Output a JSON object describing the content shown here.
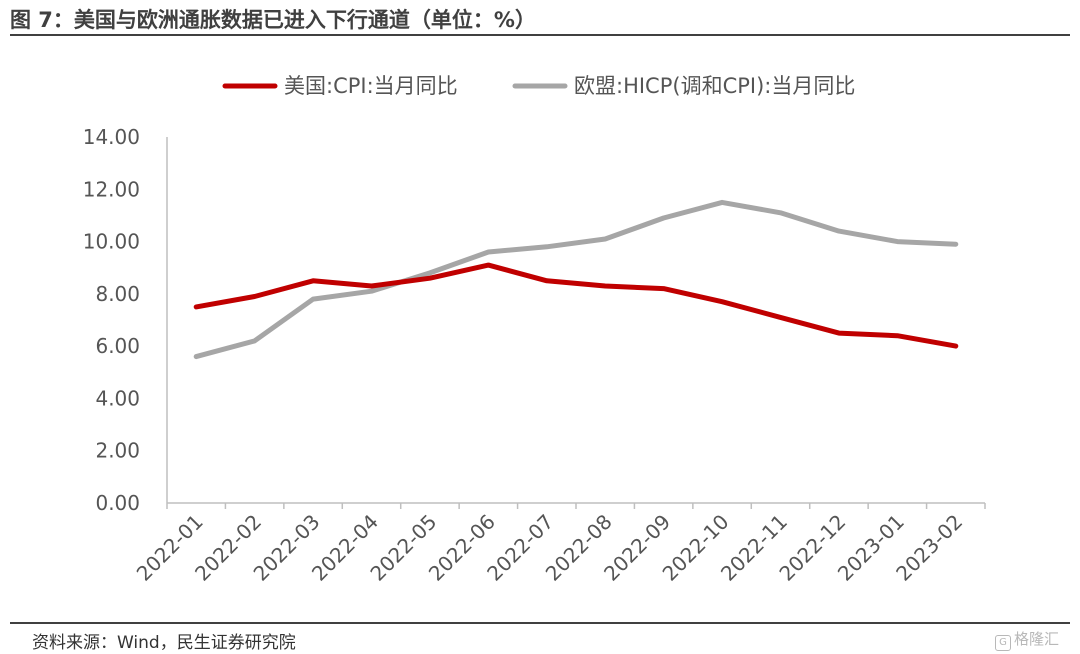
{
  "figure": {
    "title": "图 7：美国与欧洲通胀数据已进入下行通道（单位：%）",
    "source": "资料来源：Wind，民生证券研究院",
    "watermark": "格隆汇"
  },
  "chart_data": {
    "type": "line",
    "categories": [
      "2022-01",
      "2022-02",
      "2022-03",
      "2022-04",
      "2022-05",
      "2022-06",
      "2022-07",
      "2022-08",
      "2022-09",
      "2022-10",
      "2022-11",
      "2022-12",
      "2023-01",
      "2023-02"
    ],
    "ylim": [
      0,
      14
    ],
    "yticks": [
      "0.00",
      "2.00",
      "4.00",
      "6.00",
      "8.00",
      "10.00",
      "12.00",
      "14.00"
    ],
    "grid": false,
    "legend_position": "top",
    "series": [
      {
        "name": "美国:CPI:当月同比",
        "color": "#c00000",
        "values": [
          7.5,
          7.9,
          8.5,
          8.3,
          8.6,
          9.1,
          8.5,
          8.3,
          8.2,
          7.7,
          7.1,
          6.5,
          6.4,
          6.0
        ]
      },
      {
        "name": "欧盟:HICP(调和CPI):当月同比",
        "color": "#a6a6a6",
        "values": [
          5.6,
          6.2,
          7.8,
          8.1,
          8.8,
          9.6,
          9.8,
          10.1,
          10.9,
          11.5,
          11.1,
          10.4,
          10.0,
          9.9
        ]
      }
    ]
  }
}
